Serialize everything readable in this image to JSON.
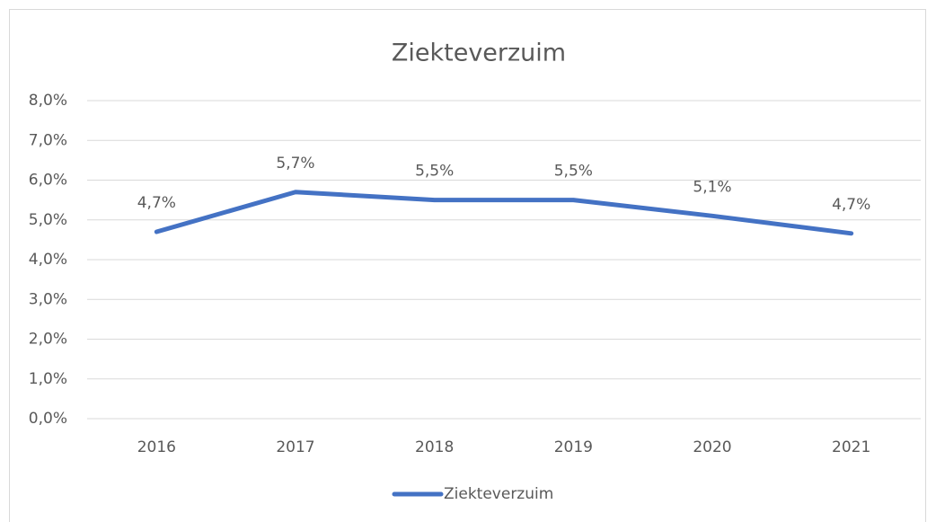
{
  "chart_data": {
    "type": "line",
    "title": "Ziekteverzuim",
    "categories": [
      "2016",
      "2017",
      "2018",
      "2019",
      "2020",
      "2021"
    ],
    "series": [
      {
        "name": "Ziekteverzuim",
        "color": "#4472c4",
        "values": [
          4.7,
          5.7,
          5.5,
          5.5,
          5.1,
          4.66
        ],
        "value_labels": [
          "4,7%",
          "5,7%",
          "5,5%",
          "5,5%",
          "5,1%",
          "4,7%"
        ]
      }
    ],
    "ylim": [
      0,
      8
    ],
    "yticks": [
      {
        "value": 0,
        "label": "0,0%"
      },
      {
        "value": 1,
        "label": "1,0%"
      },
      {
        "value": 2,
        "label": "2,0%"
      },
      {
        "value": 3,
        "label": "3,0%"
      },
      {
        "value": 4,
        "label": "4,0%"
      },
      {
        "value": 5,
        "label": "5,0%"
      },
      {
        "value": 6,
        "label": "6,0%"
      },
      {
        "value": 7,
        "label": "7,0%"
      },
      {
        "value": 8,
        "label": "8,0%"
      }
    ],
    "grid": true,
    "legend": "bottom"
  }
}
